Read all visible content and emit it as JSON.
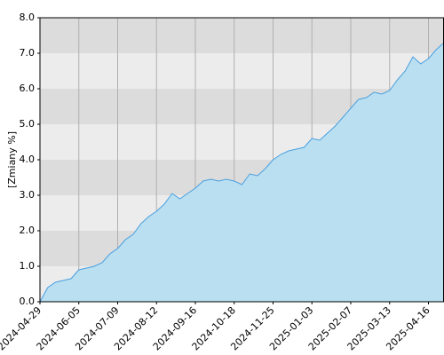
{
  "chart_data": {
    "type": "area",
    "y_label": "[Zmiany %]",
    "categories": [
      "2024-04-29",
      null,
      null,
      null,
      null,
      "2024-06-05",
      null,
      null,
      null,
      null,
      "2024-07-09",
      null,
      null,
      null,
      null,
      "2024-08-12",
      null,
      null,
      null,
      null,
      "2024-09-16",
      null,
      null,
      null,
      null,
      "2024-10-18",
      null,
      null,
      null,
      null,
      "2024-11-25",
      null,
      null,
      null,
      null,
      "2025-01-03",
      null,
      null,
      null,
      null,
      "2025-02-07",
      null,
      null,
      null,
      null,
      "2025-03-13",
      null,
      null,
      null,
      null,
      "2025-04-16",
      null,
      null
    ],
    "values": [
      0.0,
      0.4,
      0.55,
      0.6,
      0.65,
      0.9,
      0.95,
      1.0,
      1.1,
      1.35,
      1.5,
      1.75,
      1.9,
      2.2,
      2.4,
      2.55,
      2.75,
      3.05,
      2.9,
      3.05,
      3.2,
      3.4,
      3.45,
      3.4,
      3.45,
      3.4,
      3.3,
      3.6,
      3.55,
      3.75,
      4.0,
      4.15,
      4.25,
      4.3,
      4.35,
      4.6,
      4.55,
      4.75,
      4.95,
      5.2,
      5.45,
      5.7,
      5.75,
      5.9,
      5.85,
      5.95,
      6.25,
      6.5,
      6.9,
      6.7,
      6.85,
      7.1,
      7.3
    ],
    "color": "#4a9fe0",
    "fill": "#b9dff0",
    "band_colors": [
      "#ececec",
      "#dcdcdc"
    ],
    "ylim": [
      0,
      8
    ],
    "yticks": [
      {
        "value": 0,
        "label": "0.0"
      },
      {
        "value": 1,
        "label": "1.0"
      },
      {
        "value": 2,
        "label": "2.0"
      },
      {
        "value": 3,
        "label": "3.0"
      },
      {
        "value": 4,
        "label": "4.0"
      },
      {
        "value": 5,
        "label": "5.0"
      },
      {
        "value": 6,
        "label": "6.0"
      },
      {
        "value": 7,
        "label": "7.0"
      },
      {
        "value": 8,
        "label": "8.0"
      }
    ],
    "grid": true
  }
}
